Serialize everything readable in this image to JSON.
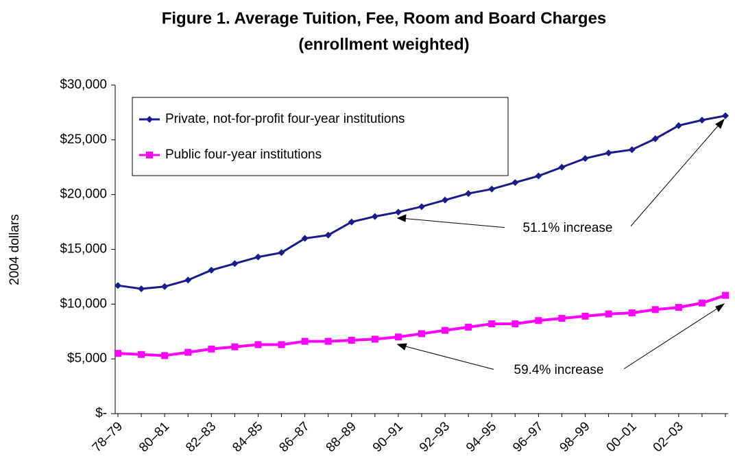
{
  "chart_data": {
    "type": "line",
    "title": "Figure 1. Average Tuition, Fee, Room and Board Charges",
    "subtitle": "(enrollment weighted)",
    "y_label": "2004 dollars",
    "categories": [
      "78–79",
      null,
      "80–81",
      null,
      "82–83",
      null,
      "84–85",
      null,
      "86–87",
      null,
      "88–89",
      null,
      "90–91",
      null,
      "92–93",
      null,
      "94–95",
      null,
      "96–97",
      null,
      "98–99",
      null,
      "00–01",
      null,
      "02–03",
      null,
      null
    ],
    "series": [
      {
        "name": "Private, not-for-profit four-year institutions",
        "color": "#1a1a8c",
        "marker": "diamond",
        "values": [
          11700,
          11400,
          11600,
          12200,
          13100,
          13700,
          14300,
          14700,
          16000,
          16300,
          17500,
          18000,
          18400,
          18900,
          19500,
          20100,
          20500,
          21100,
          21700,
          22500,
          23300,
          23800,
          24100,
          25100,
          26300,
          26800,
          27200
        ]
      },
      {
        "name": "Public four-year institutions",
        "color": "#ff00ff",
        "marker": "square",
        "values": [
          5500,
          5400,
          5300,
          5600,
          5900,
          6100,
          6300,
          6300,
          6600,
          6600,
          6700,
          6800,
          7000,
          7300,
          7600,
          7900,
          8200,
          8200,
          8500,
          8700,
          8900,
          9100,
          9200,
          9500,
          9700,
          10100,
          10800
        ]
      }
    ],
    "ylim": [
      0,
      30000
    ],
    "yticks": [
      {
        "value": 0,
        "label": "$-"
      },
      {
        "value": 5000,
        "label": "$5,000"
      },
      {
        "value": 10000,
        "label": "$10,000"
      },
      {
        "value": 15000,
        "label": "$15,000"
      },
      {
        "value": 20000,
        "label": "$20,000"
      },
      {
        "value": 25000,
        "label": "$25,000"
      },
      {
        "value": 30000,
        "label": "$30,000"
      }
    ],
    "grid": false,
    "legend": "top-left",
    "annotations": [
      "51.1% increase",
      "59.4% increase"
    ]
  }
}
